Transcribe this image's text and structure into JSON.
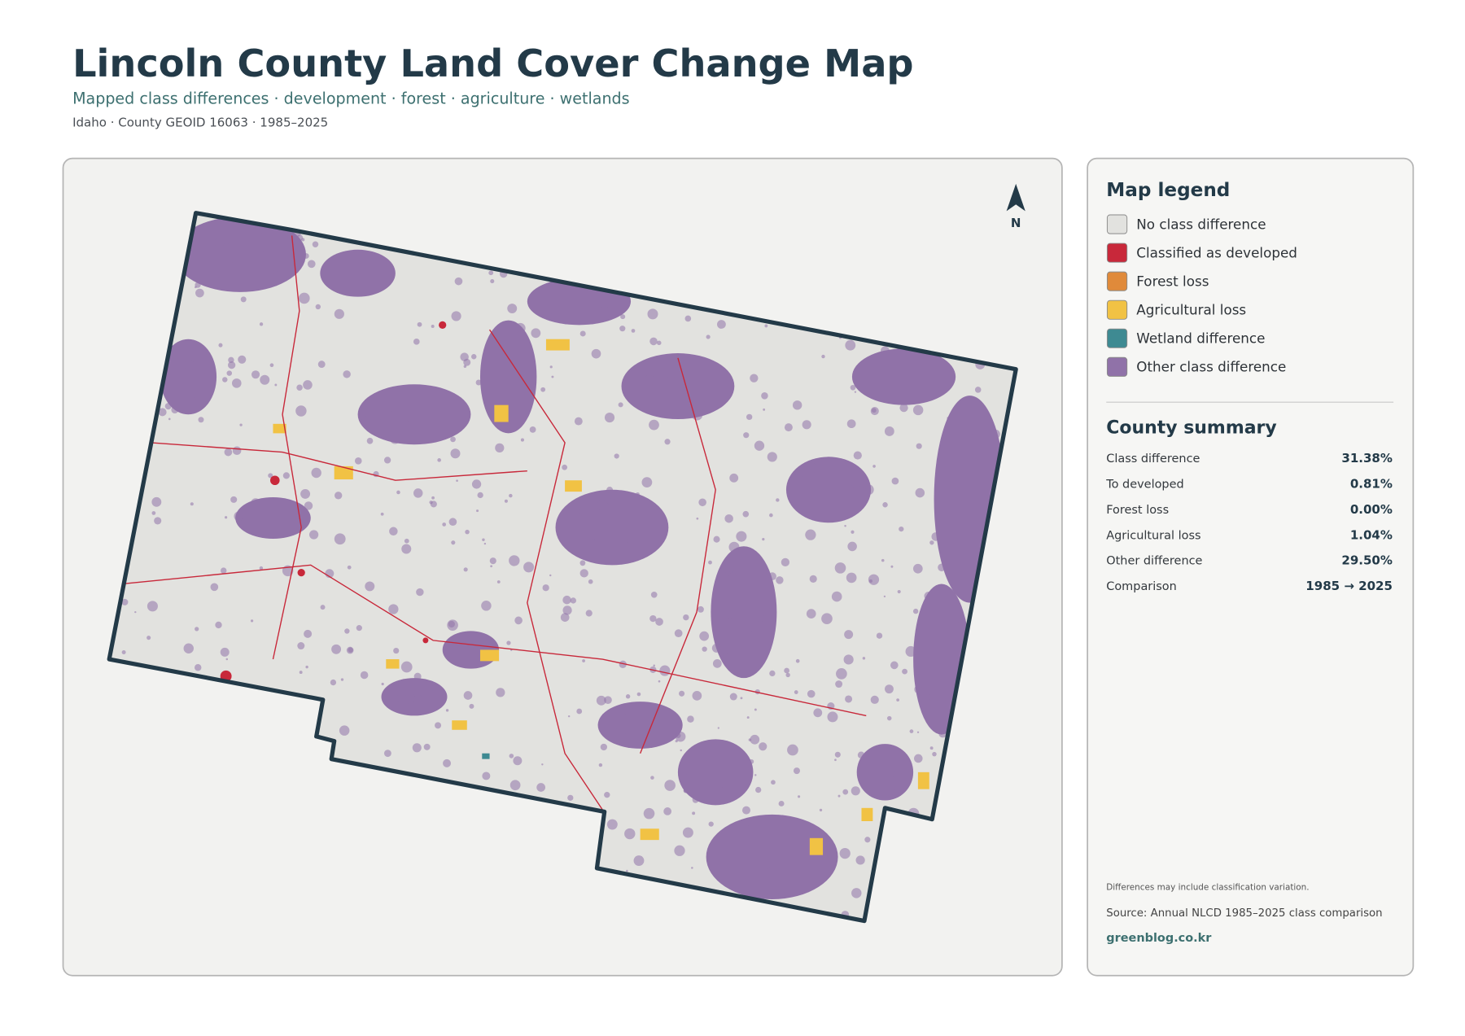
{
  "header": {
    "title": "Lincoln County Land Cover Change Map",
    "subtitle": "Mapped class differences · development · forest · agriculture · wetlands",
    "meta": "Idaho · County GEOID 16063 · 1985–2025"
  },
  "map": {
    "north_label": "N"
  },
  "legend": {
    "title": "Map legend",
    "items": [
      {
        "label": "No class difference",
        "color": "#e2e2df"
      },
      {
        "label": "Classified as developed",
        "color": "#c8283a"
      },
      {
        "label": "Forest loss",
        "color": "#e08a3a"
      },
      {
        "label": "Agricultural loss",
        "color": "#f1c244"
      },
      {
        "label": "Wetland difference",
        "color": "#3e8a92"
      },
      {
        "label": "Other class difference",
        "color": "#9072a8"
      }
    ]
  },
  "summary": {
    "title": "County summary",
    "rows": [
      [
        "Class difference",
        "31.38%"
      ],
      [
        "To developed",
        "0.81%"
      ],
      [
        "Forest loss",
        "0.00%"
      ],
      [
        "Agricultural loss",
        "1.04%"
      ],
      [
        "Other difference",
        "29.50%"
      ],
      [
        "Comparison",
        "1985 → 2025"
      ]
    ]
  },
  "footer": {
    "note": "Differences may include classification variation.",
    "source": "Source: Annual NLCD 1985–2025 class comparison",
    "site": "greenblog.co.kr"
  }
}
